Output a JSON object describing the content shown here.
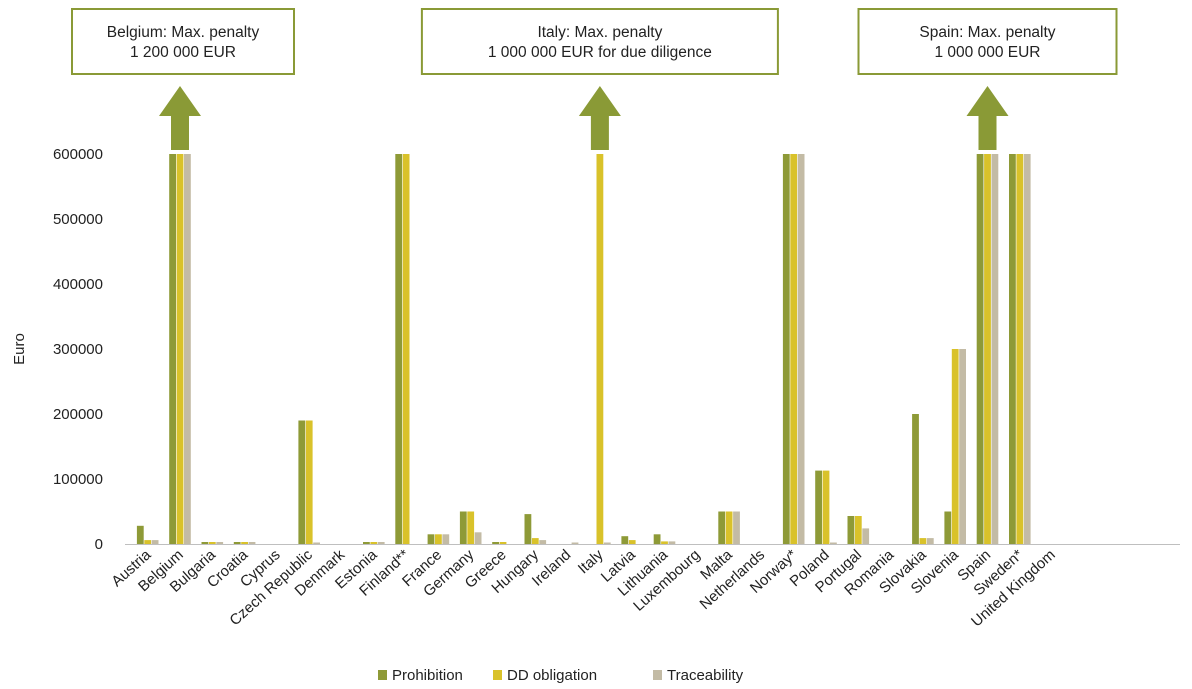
{
  "colors": {
    "prohibition": "#8e9a37",
    "dd": "#d9c22a",
    "traceability": "#c3bba5",
    "annotation_border": "#8a9a36",
    "arrow": "#8a9a36"
  },
  "chart_data": {
    "type": "bar",
    "ylabel": "Euro",
    "ylim": [
      0,
      600000
    ],
    "yticks": [
      "0",
      "100000",
      "200000",
      "300000",
      "400000",
      "500000",
      "600000"
    ],
    "categories": [
      "Austria",
      "Belgium",
      "Bulgaria",
      "Croatia",
      "Cyprus",
      "Czech Republic",
      "Denmark",
      "Estonia",
      "Finland**",
      "France",
      "Germany",
      "Greece",
      "Hungary",
      "Ireland",
      "Italy",
      "Latvia",
      "Lithuania",
      "Luxembourg",
      "Malta",
      "Netherlands",
      "Norway*",
      "Poland",
      "Portugal",
      "Romania",
      "Slovakia",
      "Slovenia",
      "Spain",
      "Sweden*",
      "United Kingdom"
    ],
    "series": [
      {
        "name": "Prohibition",
        "values": [
          28000,
          600000,
          3000,
          3000,
          0,
          190000,
          0,
          3000,
          600000,
          15000,
          50000,
          3000,
          46000,
          0,
          0,
          12000,
          15000,
          0,
          50000,
          0,
          600000,
          113000,
          43000,
          0,
          200000,
          50000,
          600000,
          600000,
          0
        ]
      },
      {
        "name": "DD obligation",
        "values": [
          6000,
          600000,
          3000,
          3000,
          0,
          190000,
          0,
          3000,
          600000,
          15000,
          50000,
          3000,
          9000,
          0,
          600000,
          6000,
          4000,
          0,
          50000,
          0,
          600000,
          113000,
          43000,
          0,
          9000,
          300000,
          600000,
          600000,
          0
        ]
      },
      {
        "name": "Traceability",
        "values": [
          6000,
          600000,
          3000,
          3000,
          0,
          2000,
          0,
          3000,
          0,
          15000,
          18000,
          0,
          6000,
          2000,
          2000,
          0,
          4000,
          0,
          50000,
          0,
          600000,
          2000,
          24000,
          0,
          9000,
          300000,
          600000,
          600000,
          0
        ]
      }
    ],
    "legend_position": "bottom",
    "annotations": [
      {
        "category": "Belgium",
        "lines": [
          "Belgium: Max. penalty",
          "1 200 000 EUR"
        ]
      },
      {
        "category": "Italy",
        "lines": [
          "Italy: Max. penalty",
          "1 000 000 EUR  for due diligence"
        ]
      },
      {
        "category": "Spain",
        "lines": [
          "Spain: Max. penalty",
          "1 000 000 EUR"
        ]
      }
    ]
  }
}
